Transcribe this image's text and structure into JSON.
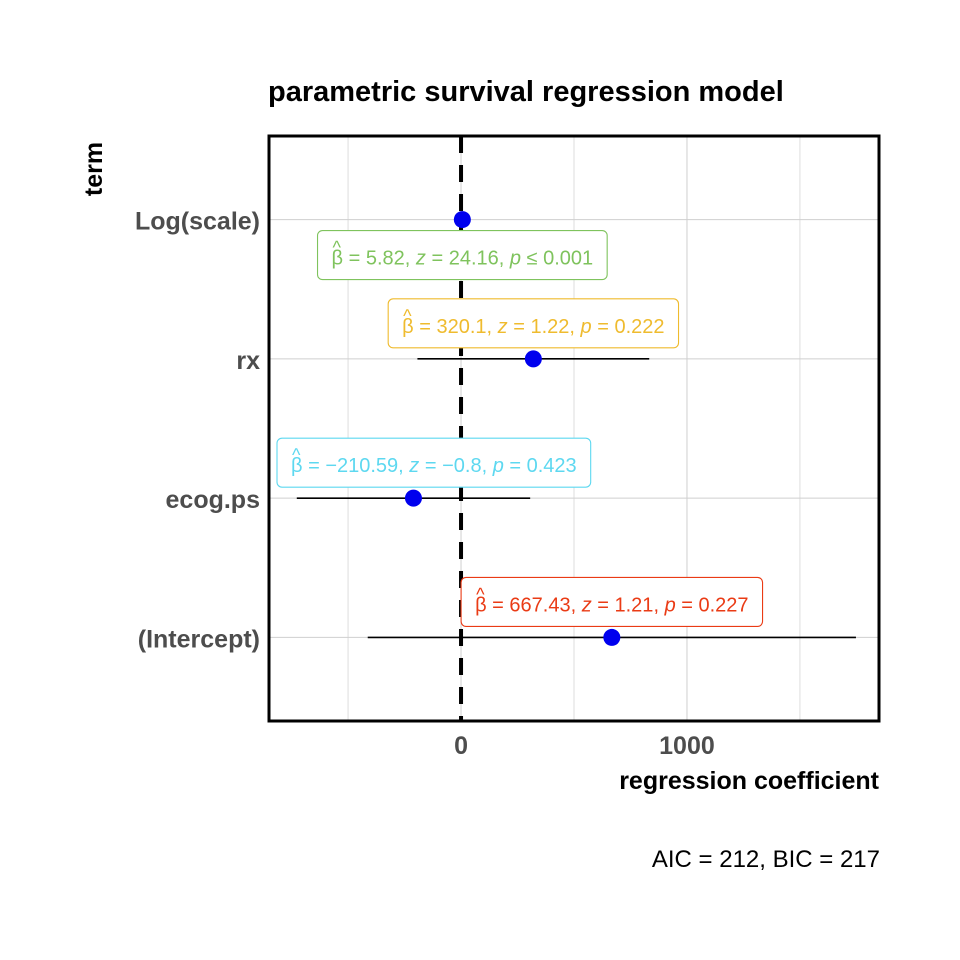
{
  "chart_data": {
    "type": "forest",
    "title": "parametric survival regression model",
    "xlabel": "regression coefficient",
    "ylabel": "term",
    "xlim": [
      -850,
      1850
    ],
    "xticks": [
      0,
      1000
    ],
    "xtick_labels": [
      "0",
      "1000"
    ],
    "minor_gridlines": [
      -500,
      500,
      1500
    ],
    "reference_line": 0,
    "caption": "AIC = 212, BIC = 217",
    "terms": [
      {
        "term": "Log(scale)",
        "estimate": 5.82,
        "ci_low": 5.82,
        "ci_high": 5.82,
        "label_parts": {
          "beta": "5.82",
          "z": "24.16",
          "p_rel": "≤",
          "p": "0.001"
        },
        "color": "#7FC35D"
      },
      {
        "term": "rx",
        "estimate": 320.1,
        "ci_low": -193,
        "ci_high": 833,
        "label_parts": {
          "beta": "320.1",
          "z": "1.22",
          "p_rel": "=",
          "p": "0.222"
        },
        "color": "#EFBB2E"
      },
      {
        "term": "ecog.ps",
        "estimate": -210.59,
        "ci_low": -727,
        "ci_high": 306,
        "label_parts": {
          "beta": "−210.59",
          "z": "−0.8",
          "p_rel": "=",
          "p": "0.423"
        },
        "color": "#5DD8F0"
      },
      {
        "term": "(Intercept)",
        "estimate": 667.43,
        "ci_low": -413,
        "ci_high": 1748,
        "label_parts": {
          "beta": "667.43",
          "z": "1.21",
          "p_rel": "=",
          "p": "0.227"
        },
        "color": "#EA3B15"
      }
    ],
    "point_color": "#0000EE"
  },
  "symbols": {
    "beta": "β",
    "hat": "^",
    "z": "z",
    "p": "p",
    "eq": "=",
    "sep": ","
  }
}
